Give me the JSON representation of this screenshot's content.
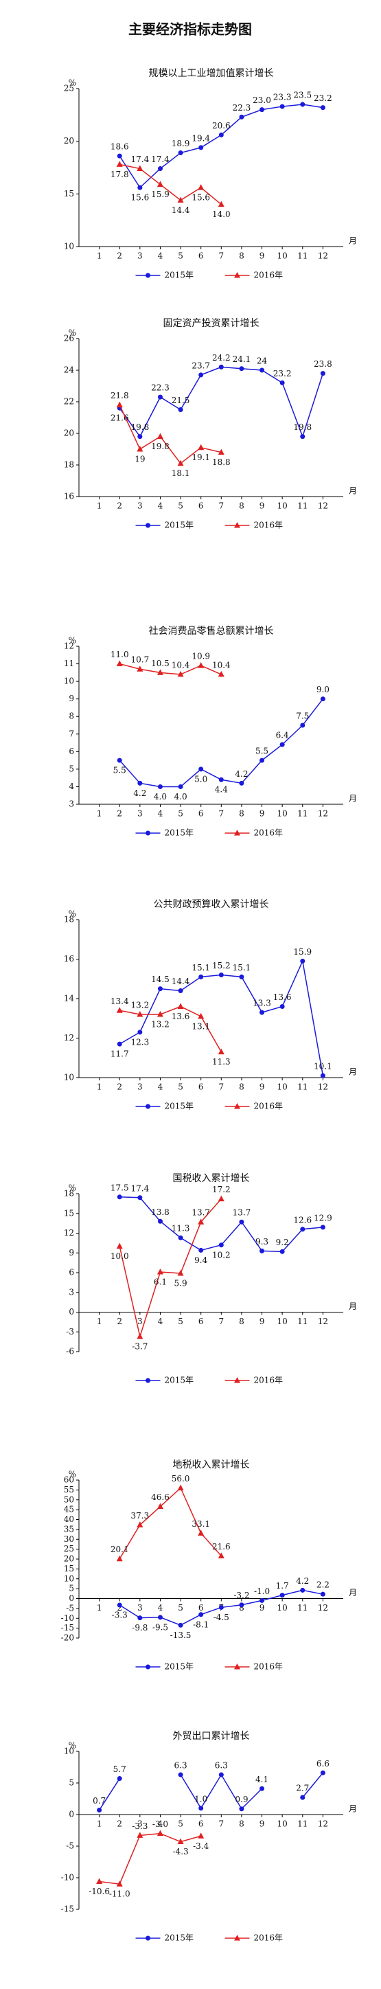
{
  "title": "主要经济指标走势图",
  "chart_data": [
    {
      "type": "line",
      "title": "规模以上工业增加值累计增长",
      "y_unit": "%",
      "x_unit": "月",
      "categories": [
        "1",
        "2",
        "3",
        "4",
        "5",
        "6",
        "7",
        "8",
        "9",
        "10",
        "11",
        "12"
      ],
      "ylim": [
        10,
        25
      ],
      "yticks": [
        10,
        15,
        20,
        25
      ],
      "series": [
        {
          "name": "2015年",
          "color": "#1a1adc",
          "marker": "circle",
          "values": [
            null,
            18.6,
            15.6,
            17.4,
            18.9,
            19.4,
            20.6,
            22.3,
            23.0,
            23.3,
            23.5,
            23.2
          ],
          "value_labels": [
            null,
            "18.6",
            "15.6",
            "17.4",
            "18.9",
            "19.4",
            "20.6",
            "22.3",
            "23.0",
            "23.3",
            "23.5",
            "23.2"
          ]
        },
        {
          "name": "2016年",
          "color": "#e02020",
          "marker": "triangle",
          "values": [
            null,
            17.8,
            17.4,
            15.9,
            14.4,
            15.6,
            14.0,
            null,
            null,
            null,
            null,
            null
          ],
          "value_labels": [
            null,
            "17.8",
            "17.4",
            "15.9",
            "14.4",
            "15.6",
            "14.0",
            null,
            null,
            null,
            null,
            null
          ]
        }
      ]
    },
    {
      "type": "line",
      "title": "固定资产投资累计增长",
      "y_unit": "%",
      "x_unit": "月",
      "categories": [
        "1",
        "2",
        "3",
        "4",
        "5",
        "6",
        "7",
        "8",
        "9",
        "10",
        "11",
        "12"
      ],
      "ylim": [
        16,
        26
      ],
      "yticks": [
        16,
        18,
        20,
        22,
        24,
        26
      ],
      "series": [
        {
          "name": "2015年",
          "color": "#1a1adc",
          "marker": "circle",
          "values": [
            null,
            21.6,
            19.8,
            22.3,
            21.5,
            23.7,
            24.2,
            24.1,
            24,
            23.2,
            19.8,
            23.8
          ],
          "value_labels": [
            null,
            "21.6",
            "19.8",
            "22.3",
            "21.5",
            "23.7",
            "24.2",
            "24.1",
            "24",
            "23.2",
            "19.8",
            "23.8"
          ]
        },
        {
          "name": "2016年",
          "color": "#e02020",
          "marker": "triangle",
          "values": [
            null,
            21.8,
            19,
            19.8,
            18.1,
            19.1,
            18.8,
            null,
            null,
            null,
            null,
            null
          ],
          "value_labels": [
            null,
            "21.8",
            "19",
            "19.8",
            "18.1",
            "19.1",
            "18.8",
            null,
            null,
            null,
            null,
            null
          ]
        }
      ]
    },
    {
      "type": "line",
      "title": "社会消费品零售总额累计增长",
      "y_unit": "%",
      "x_unit": "月",
      "categories": [
        "1",
        "2",
        "3",
        "4",
        "5",
        "6",
        "7",
        "8",
        "9",
        "10",
        "11",
        "12"
      ],
      "ylim": [
        3,
        12
      ],
      "yticks": [
        3,
        4,
        5,
        6,
        7,
        8,
        9,
        10,
        11,
        12
      ],
      "series": [
        {
          "name": "2015年",
          "color": "#1a1adc",
          "marker": "circle",
          "values": [
            null,
            5.5,
            4.2,
            4.0,
            4.0,
            5.0,
            4.4,
            4.2,
            5.5,
            6.4,
            7.5,
            9.0
          ],
          "value_labels": [
            null,
            "5.5",
            "4.2",
            "4.0",
            "4.0",
            "5.0",
            "4.4",
            "4.2",
            "5.5",
            "6.4",
            "7.5",
            "9.0"
          ]
        },
        {
          "name": "2016年",
          "color": "#e02020",
          "marker": "triangle",
          "values": [
            null,
            11.0,
            10.7,
            10.5,
            10.4,
            10.9,
            10.4,
            null,
            null,
            null,
            null,
            null
          ],
          "value_labels": [
            null,
            "11.0",
            "10.7",
            "10.5",
            "10.4",
            "10.9",
            "10.4",
            null,
            null,
            null,
            null,
            null
          ]
        }
      ]
    },
    {
      "type": "line",
      "title": "公共财政预算收入累计增长",
      "y_unit": "%",
      "x_unit": "月",
      "categories": [
        "1",
        "2",
        "3",
        "4",
        "5",
        "6",
        "7",
        "8",
        "9",
        "10",
        "11",
        "12"
      ],
      "ylim": [
        10,
        18
      ],
      "yticks": [
        10,
        12,
        14,
        16,
        18
      ],
      "series": [
        {
          "name": "2015年",
          "color": "#1a1adc",
          "marker": "circle",
          "values": [
            null,
            11.7,
            12.3,
            14.5,
            14.4,
            15.1,
            15.2,
            15.1,
            13.3,
            13.6,
            15.9,
            10.1
          ],
          "value_labels": [
            null,
            "11.7",
            "12.3",
            "14.5",
            "14.4",
            "15.1",
            "15.2",
            "15.1",
            "13.3",
            "13.6",
            "15.9",
            "10.1"
          ]
        },
        {
          "name": "2016年",
          "color": "#e02020",
          "marker": "triangle",
          "values": [
            null,
            13.4,
            13.2,
            13.2,
            13.6,
            13.1,
            11.3,
            null,
            null,
            null,
            null,
            null
          ],
          "value_labels": [
            null,
            "13.4",
            "13.2",
            "13.2",
            "13.6",
            "13.1",
            "11.3",
            null,
            null,
            null,
            null,
            null
          ]
        }
      ]
    },
    {
      "type": "line",
      "title": "国税收入累计增长",
      "y_unit": "%",
      "x_unit": "月",
      "categories": [
        "1",
        "2",
        "3",
        "4",
        "5",
        "6",
        "7",
        "8",
        "9",
        "10",
        "11",
        "12"
      ],
      "ylim": [
        -6,
        18
      ],
      "yticks": [
        -6,
        -3,
        0,
        3,
        6,
        9,
        12,
        15,
        18
      ],
      "series": [
        {
          "name": "2015年",
          "color": "#1a1adc",
          "marker": "circle",
          "values": [
            null,
            17.5,
            17.4,
            13.8,
            11.3,
            9.4,
            10.2,
            13.7,
            9.3,
            9.2,
            12.6,
            12.9
          ],
          "value_labels": [
            null,
            "17.5",
            "17.4",
            "13.8",
            "11.3",
            "9.4",
            "10.2",
            "13.7",
            "9.3",
            "9.2",
            "12.6",
            "12.9"
          ]
        },
        {
          "name": "2016年",
          "color": "#e02020",
          "marker": "triangle",
          "values": [
            null,
            10.0,
            -3.7,
            6.1,
            5.9,
            13.7,
            17.2,
            null,
            null,
            null,
            null,
            null
          ],
          "value_labels": [
            null,
            "10.0",
            "-3.7",
            "6.1",
            "5.9",
            "13.7",
            "17.2",
            null,
            null,
            null,
            null,
            null
          ]
        }
      ]
    },
    {
      "type": "line",
      "title": "地税收入累计增长",
      "y_unit": "%",
      "x_unit": "月",
      "categories": [
        "1",
        "2",
        "3",
        "4",
        "5",
        "6",
        "7",
        "8",
        "9",
        "10",
        "11",
        "12"
      ],
      "ylim": [
        -20,
        60
      ],
      "yticks": [
        -20,
        -15,
        -10,
        -5,
        0,
        5,
        10,
        15,
        20,
        25,
        30,
        35,
        40,
        45,
        50,
        55,
        60
      ],
      "series": [
        {
          "name": "2015年",
          "color": "#1a1adc",
          "marker": "circle",
          "values": [
            null,
            -3.3,
            -9.8,
            -9.5,
            -13.5,
            -8.1,
            -4.5,
            -3.2,
            -1.0,
            1.7,
            4.2,
            2.2
          ],
          "value_labels": [
            null,
            "-3.3",
            "-9.8",
            "-9.5",
            "-13.5",
            "-8.1",
            "-4.5",
            "-3.2",
            "-1.0",
            "1.7",
            "4.2",
            "2.2"
          ]
        },
        {
          "name": "2016年",
          "color": "#e02020",
          "marker": "triangle",
          "values": [
            null,
            20.1,
            37.3,
            46.6,
            56.0,
            33.1,
            21.6,
            null,
            null,
            null,
            null,
            null
          ],
          "value_labels": [
            null,
            "20.1",
            "37.3",
            "46.6",
            "56.0",
            "33.1",
            "21.6",
            null,
            null,
            null,
            null,
            null
          ]
        }
      ]
    },
    {
      "type": "line",
      "title": "外贸出口累计增长",
      "y_unit": "%",
      "x_unit": "月",
      "categories": [
        "1",
        "2",
        "3",
        "4",
        "5",
        "6",
        "7",
        "8",
        "9",
        "10",
        "11",
        "12"
      ],
      "ylim": [
        -15,
        10
      ],
      "yticks": [
        -15,
        -10,
        -5,
        0,
        5,
        10
      ],
      "series": [
        {
          "name": "2015年",
          "color": "#1a1adc",
          "marker": "circle",
          "values": [
            0.7,
            5.7,
            null,
            null,
            6.3,
            1.0,
            6.3,
            0.9,
            4.1,
            null,
            2.7,
            6.6
          ],
          "value_labels": [
            "0.7",
            "5.7",
            null,
            null,
            "6.3",
            "1.0",
            "6.3",
            "0.9",
            "4.1",
            null,
            "2.7",
            "6.6"
          ]
        },
        {
          "name": "2016年",
          "color": "#e02020",
          "marker": "triangle",
          "values": [
            -10.6,
            -11.0,
            -3.3,
            -3.0,
            -4.3,
            -3.4,
            null,
            null,
            null,
            null,
            null,
            null
          ],
          "value_labels": [
            "-10.6",
            "-11.0",
            "-3.3",
            "-3.0",
            "-4.3",
            "-3.4",
            null,
            null,
            null,
            null,
            null,
            null
          ]
        }
      ]
    }
  ]
}
